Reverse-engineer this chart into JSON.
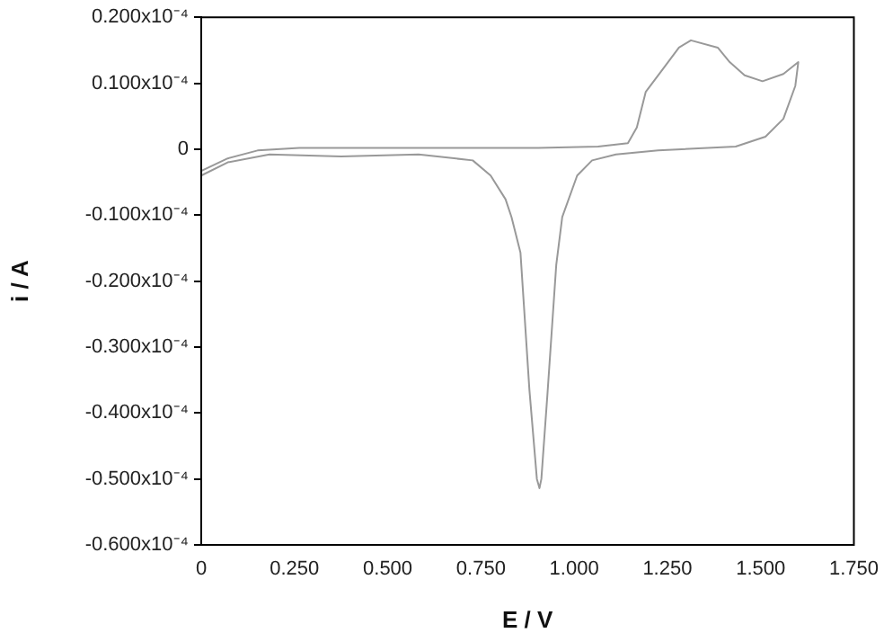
{
  "chart_data": {
    "type": "line",
    "xlabel": "E / V",
    "ylabel": "i / A",
    "series": [
      {
        "color": "#999999",
        "x": [
          0,
          0.071,
          0.151,
          0.263,
          0.583,
          0.904,
          1.064,
          1.144,
          1.168,
          1.192,
          1.24,
          1.281,
          1.313,
          1.385,
          1.417,
          1.457,
          1.505,
          1.561,
          1.601,
          1.593,
          1.561,
          1.513,
          1.433,
          1.225,
          1.112,
          1.048,
          1.008,
          0.968,
          0.952,
          0.928,
          0.912,
          0.907,
          0.9,
          0.88,
          0.856,
          0.832,
          0.816,
          0.776,
          0.728,
          0.583,
          0.375,
          0.183,
          0.071,
          0
        ],
        "values": [
          -3.3e-06,
          -1.4e-06,
          -2e-07,
          2e-07,
          2e-07,
          2e-07,
          4e-07,
          9e-07,
          3.3e-06,
          8.7e-06,
          1.23e-05,
          1.54e-05,
          1.65e-05,
          1.54e-05,
          1.32e-05,
          1.12e-05,
          1.03e-05,
          1.14e-05,
          1.32e-05,
          9.6e-06,
          4.6e-06,
          1.9e-06,
          4e-07,
          -2e-07,
          -8e-07,
          -1.7e-06,
          -4e-06,
          -1.03e-05,
          -1.75e-05,
          -3.74e-05,
          -5e-05,
          -5.14e-05,
          -5e-05,
          -3.65e-05,
          -1.57e-05,
          -1.03e-05,
          -7.6e-06,
          -4e-06,
          -1.7e-06,
          -8e-07,
          -1.1e-06,
          -8e-07,
          -2e-06,
          -4e-06
        ]
      }
    ],
    "xlim": [
      0,
      1.75
    ],
    "xticks": [
      0,
      {
        "value": 0.25,
        "label": "0.250"
      },
      {
        "value": 0.5,
        "label": "0.500"
      },
      {
        "value": 0.75,
        "label": "0.750"
      },
      {
        "value": 1,
        "label": "1.000"
      },
      {
        "value": 1.25,
        "label": "1.250"
      },
      {
        "value": 1.5,
        "label": "1.500"
      },
      {
        "value": 1.75,
        "label": "1.750"
      }
    ],
    "ylim": [
      -6e-05,
      2e-05
    ],
    "yticks": [
      {
        "value": 2e-05,
        "label": "0.200x10⁻⁴"
      },
      {
        "value": 1e-05,
        "label": "0.100x10⁻⁴"
      },
      0,
      {
        "value": -1e-05,
        "label": "-0.100x10⁻⁴"
      },
      {
        "value": -2e-05,
        "label": "-0.200x10⁻⁴"
      },
      {
        "value": -3e-05,
        "label": "-0.300x10⁻⁴"
      },
      {
        "value": -4e-05,
        "label": "-0.400x10⁻⁴"
      },
      {
        "value": -5e-05,
        "label": "-0.500x10⁻⁴"
      },
      {
        "value": -6e-05,
        "label": "-0.600x10⁻⁴"
      }
    ],
    "grid": false,
    "legend": false
  }
}
